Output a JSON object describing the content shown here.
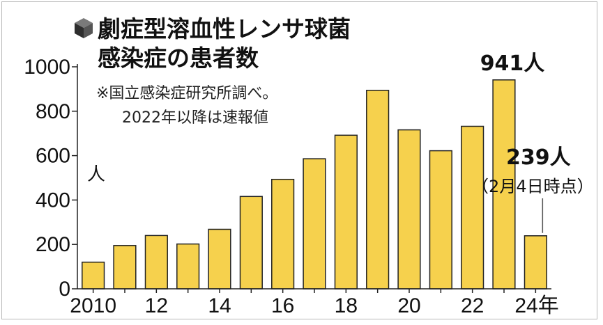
{
  "chart_data": {
    "type": "bar",
    "title_lines": [
      "劇症型溶血性レンサ球菌",
      "感染症の患者数"
    ],
    "note_lines": [
      "※国立感染症研究所調べ。",
      "2022年以降は速報値"
    ],
    "ylabel": "人",
    "xlabel": "年",
    "ylim": [
      0,
      1000
    ],
    "yticks": [
      0,
      200,
      400,
      600,
      800,
      1000
    ],
    "x": [
      2010,
      2011,
      2012,
      2013,
      2014,
      2015,
      2016,
      2017,
      2018,
      2019,
      2020,
      2021,
      2022,
      2023,
      2024
    ],
    "x_tick_labels": [
      {
        "x": 2010,
        "label": "2010"
      },
      {
        "x": 2012,
        "label": "12"
      },
      {
        "x": 2014,
        "label": "14"
      },
      {
        "x": 2016,
        "label": "16"
      },
      {
        "x": 2018,
        "label": "18"
      },
      {
        "x": 2020,
        "label": "20"
      },
      {
        "x": 2022,
        "label": "22"
      },
      {
        "x": 2024,
        "label": "24年"
      }
    ],
    "values": [
      120,
      195,
      240,
      202,
      268,
      416,
      493,
      586,
      692,
      894,
      716,
      622,
      732,
      941,
      239
    ],
    "annotations": [
      {
        "x": 2023,
        "value": 941,
        "label": "941人"
      },
      {
        "x": 2024,
        "value": 239,
        "label": "239人",
        "sublabel": "（2月4日時点）"
      }
    ],
    "grid": false,
    "bar_color": "#f6d14d"
  },
  "icon": "cube-icon"
}
